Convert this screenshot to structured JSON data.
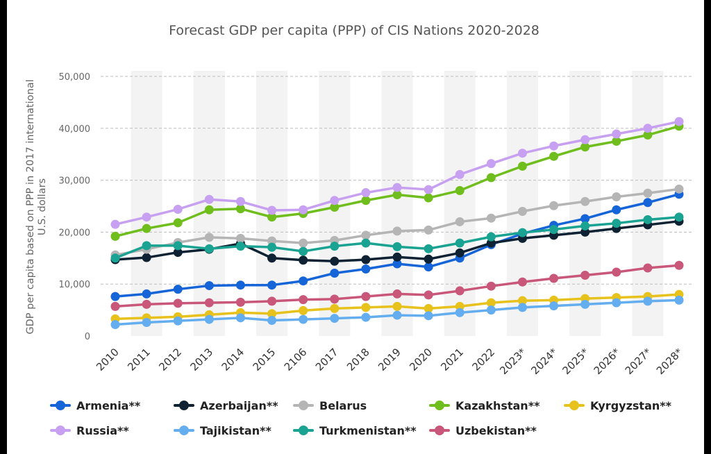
{
  "chart_data": {
    "type": "line",
    "title": "Forecast GDP per capita (PPP) of CIS Nations 2020-2028",
    "ylabel_line1": "GDP per capita based on PPP in 2017 international",
    "ylabel_line2": "U.S. dollars",
    "xlabel": "",
    "ylim": [
      0,
      50000
    ],
    "yticks": [
      0,
      10000,
      20000,
      30000,
      40000,
      50000
    ],
    "ytick_labels": [
      "0",
      "10,000",
      "20,000",
      "30,000",
      "40,000",
      "50,000"
    ],
    "grid": "horizontal dashed",
    "legend_position": "bottom",
    "categories": [
      "2010",
      "2011",
      "2012",
      "2013",
      "2014",
      "2015",
      "2106",
      "2017",
      "2018",
      "2019",
      "2020",
      "2021",
      "2022",
      "2023*",
      "2024*",
      "2025*",
      "2026*",
      "2027*",
      "2028*"
    ],
    "series": [
      {
        "name": "Armenia**",
        "color": "#1565d8",
        "values": [
          7600,
          8100,
          9000,
          9700,
          9800,
          9800,
          10600,
          12100,
          12900,
          13900,
          13300,
          15000,
          17600,
          19700,
          21300,
          22600,
          24300,
          25700,
          27300
        ]
      },
      {
        "name": "Azerbaijan**",
        "color": "#0e2233",
        "values": [
          14700,
          15100,
          16100,
          16700,
          17800,
          15000,
          14600,
          14400,
          14700,
          15200,
          14800,
          16000,
          17900,
          18800,
          19400,
          20000,
          20700,
          21400,
          22100
        ]
      },
      {
        "name": "Belarus",
        "color": "#b5b5b5",
        "values": [
          15600,
          16700,
          18000,
          19000,
          18800,
          18300,
          17900,
          18400,
          19400,
          20200,
          20400,
          22000,
          22700,
          24000,
          25100,
          25900,
          26800,
          27500,
          28300
        ]
      },
      {
        "name": "Kazakhstan**",
        "color": "#6fbe1e",
        "values": [
          19200,
          20700,
          21800,
          24300,
          24500,
          22900,
          23600,
          24800,
          26100,
          27200,
          26600,
          28000,
          30500,
          32700,
          34600,
          36400,
          37500,
          38700,
          40400
        ]
      },
      {
        "name": "Kyrgyzstan**",
        "color": "#e8c21c",
        "values": [
          3300,
          3500,
          3700,
          4100,
          4500,
          4300,
          4900,
          5300,
          5500,
          5700,
          5300,
          5700,
          6400,
          6800,
          6900,
          7200,
          7400,
          7600,
          8000
        ]
      },
      {
        "name": "Russia**",
        "color": "#c7a0f2",
        "values": [
          21500,
          22900,
          24400,
          26300,
          25900,
          24200,
          24300,
          26100,
          27600,
          28600,
          28200,
          31100,
          33200,
          35200,
          36600,
          37800,
          38900,
          40000,
          41300
        ]
      },
      {
        "name": "Tajikistan**",
        "color": "#64aef0",
        "values": [
          2200,
          2600,
          2900,
          3200,
          3500,
          3000,
          3200,
          3400,
          3600,
          4000,
          3900,
          4500,
          5000,
          5500,
          5800,
          6100,
          6400,
          6700,
          6900
        ]
      },
      {
        "name": "Turkmenistan**",
        "color": "#1aa392",
        "values": [
          15000,
          17400,
          17400,
          16800,
          17300,
          17100,
          16300,
          17300,
          17900,
          17200,
          16800,
          17900,
          19100,
          19900,
          20500,
          21200,
          21700,
          22400,
          22900
        ]
      },
      {
        "name": "Uzbekistan**",
        "color": "#c9577a",
        "values": [
          5700,
          6100,
          6300,
          6400,
          6500,
          6700,
          7000,
          7100,
          7600,
          8100,
          7900,
          8700,
          9600,
          10400,
          11100,
          11700,
          12300,
          13100,
          13600
        ]
      }
    ]
  }
}
